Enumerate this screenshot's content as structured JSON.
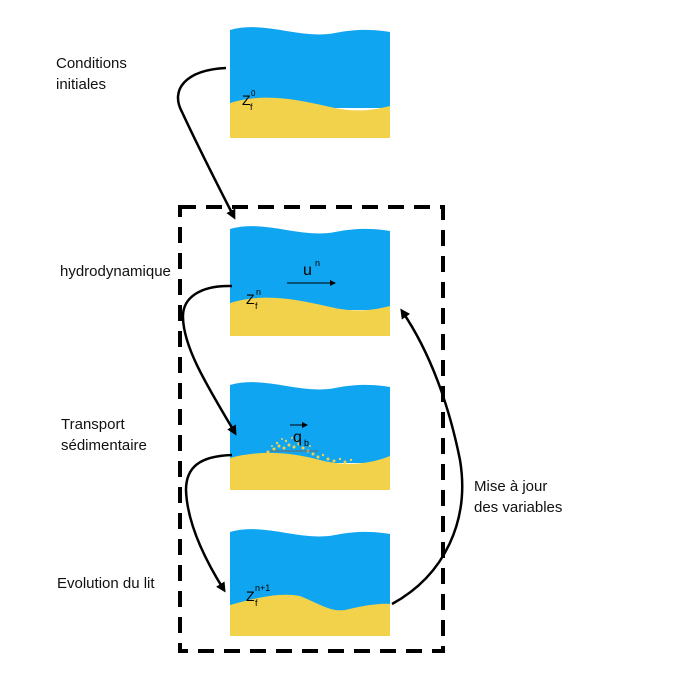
{
  "labels": {
    "initial": "Conditions\ninitiales",
    "hydro": "hydrodynamique",
    "transport": "Transport\nsédimentaire",
    "evolution": "Evolution du lit",
    "update": "Mise à jour\ndes variables"
  },
  "symbols": {
    "z": "Z",
    "f": "f",
    "sup0": "0",
    "supn": "n",
    "supn1": "n+1",
    "u": "u",
    "q": "q",
    "b": "b"
  },
  "colors": {
    "water": "#10A5F0",
    "sand": "#F2D14B",
    "arrow": "#000000",
    "frame": "#000000"
  }
}
